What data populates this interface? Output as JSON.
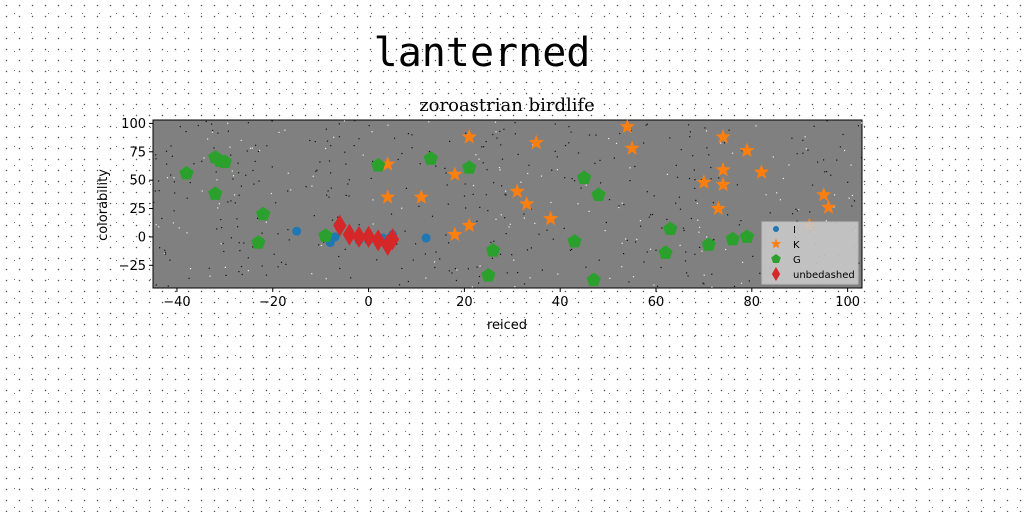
{
  "chart_data": {
    "type": "scatter",
    "suptitle": "lanterned",
    "title": "zoroastrian birdlife",
    "xlabel": "reiced",
    "ylabel": "colorability",
    "xlim": [
      -45,
      103
    ],
    "ylim": [
      -45,
      103
    ],
    "xticks": [
      -40,
      -20,
      0,
      20,
      40,
      60,
      80,
      100
    ],
    "yticks": [
      -25,
      0,
      25,
      50,
      75,
      100
    ],
    "grid": false,
    "legend_position": "lower-right",
    "series": [
      {
        "name": "I",
        "marker": "circle",
        "color": "#1f77b4",
        "points": [
          [
            -15,
            5
          ],
          [
            -8,
            -5
          ],
          [
            -7,
            0
          ],
          [
            -2,
            -3
          ],
          [
            0,
            -3
          ],
          [
            3,
            -1
          ],
          [
            5,
            2
          ],
          [
            12,
            -1
          ]
        ]
      },
      {
        "name": "K",
        "marker": "star",
        "color": "#ff7f0e",
        "points": [
          [
            4,
            64
          ],
          [
            4,
            35
          ],
          [
            11,
            35
          ],
          [
            18,
            2
          ],
          [
            18,
            55
          ],
          [
            21,
            88
          ],
          [
            21,
            10
          ],
          [
            31,
            40
          ],
          [
            33,
            29
          ],
          [
            35,
            83
          ],
          [
            38,
            16
          ],
          [
            54,
            97
          ],
          [
            55,
            78
          ],
          [
            70,
            48
          ],
          [
            73,
            25
          ],
          [
            74,
            88
          ],
          [
            74,
            59
          ],
          [
            74,
            46
          ],
          [
            79,
            76
          ],
          [
            82,
            57
          ],
          [
            92,
            10
          ],
          [
            95,
            37
          ],
          [
            96,
            26
          ]
        ]
      },
      {
        "name": "G",
        "marker": "pentagon",
        "color": "#2ca02c",
        "points": [
          [
            -38,
            56
          ],
          [
            -32,
            70
          ],
          [
            -31,
            67
          ],
          [
            -30,
            66
          ],
          [
            -32,
            38
          ],
          [
            -22,
            20
          ],
          [
            -23,
            -5
          ],
          [
            -9,
            1
          ],
          [
            2,
            63
          ],
          [
            13,
            69
          ],
          [
            21,
            61
          ],
          [
            26,
            -12
          ],
          [
            25,
            -34
          ],
          [
            45,
            52
          ],
          [
            48,
            37
          ],
          [
            43,
            -4
          ],
          [
            47,
            -38
          ],
          [
            62,
            -14
          ],
          [
            63,
            7
          ],
          [
            71,
            -7
          ],
          [
            76,
            -2
          ],
          [
            79,
            0
          ]
        ]
      },
      {
        "name": "unbedashed",
        "marker": "diamond",
        "color": "#d62728",
        "points": [
          [
            -6,
            10
          ],
          [
            -4,
            2
          ],
          [
            -2,
            0
          ],
          [
            0,
            0
          ],
          [
            2,
            -3
          ],
          [
            4,
            -7
          ],
          [
            5,
            -2
          ]
        ]
      }
    ]
  }
}
